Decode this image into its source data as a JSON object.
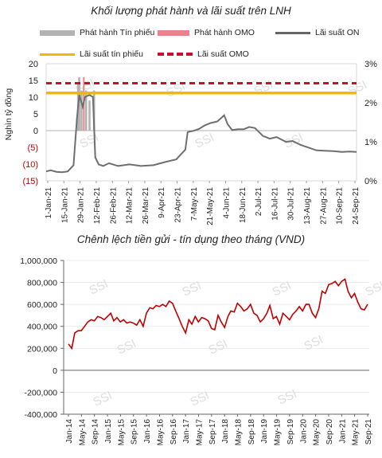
{
  "chart_data": [
    {
      "type": "line",
      "title": "Khối lượng phát hành và lãi suất trên LNH",
      "ylabel": "Nghìn tỷ đồng",
      "ylim": [
        -15,
        20
      ],
      "y_ticks": [
        "20",
        "15",
        "10",
        "5",
        "0",
        "(5)",
        "(10)",
        "(15)"
      ],
      "y_tick_values": [
        20,
        15,
        10,
        5,
        0,
        -5,
        -10,
        -15
      ],
      "y2lim": [
        0,
        3
      ],
      "y2_ticks": [
        "3%",
        "2%",
        "1%",
        "0%"
      ],
      "y2_tick_values": [
        3,
        2,
        1,
        0
      ],
      "x_tick_labels": [
        "1-Jan-21",
        "15-Jan-21",
        "29-Jan-21",
        "12-Feb-21",
        "26-Feb-21",
        "12-Mar-21",
        "26-Mar-21",
        "9-Apr-21",
        "23-Apr-21",
        "7-May-21",
        "21-May-21",
        "4-Jun-21",
        "18-Jun-21",
        "2-Jul-21",
        "16-Jul-21",
        "30-Jul-21",
        "13-Aug-21",
        "27-Aug-21",
        "10-Sep-21",
        "24-Sep-21"
      ],
      "legend": {
        "tinphieu_bar": "Phát hành Tín phiếu",
        "omo_bar": "Phát hành OMO",
        "on_rate": "Lãi suất ON",
        "tinphieu_rate": "Lãi suất tín phiếu",
        "omo_rate": "Lãi suất OMO"
      },
      "colors": {
        "tinphieu_bar": "#b3b3b3",
        "omo_bar": "#e8838d",
        "on_rate": "#6e6e6e",
        "tinphieu_rate": "#f5b800",
        "omo_rate": "#c8102e"
      },
      "series": [
        {
          "name": "Phát hành Tín phiếu",
          "axis": "left",
          "kind": "bar",
          "x": [
            "2021-01-29",
            "2021-01-30",
            "2021-02-01",
            "2021-02-05",
            "2021-02-08",
            "2021-02-12"
          ],
          "values": [
            14,
            16,
            12,
            12,
            9,
            12
          ]
        },
        {
          "name": "Phát hành OMO",
          "axis": "left",
          "kind": "bar",
          "x": [
            "2021-02-03"
          ],
          "values": [
            16
          ]
        },
        {
          "name": "Lãi suất ON",
          "axis": "right",
          "unit": "%",
          "x": [
            "2021-01-01",
            "2021-01-05",
            "2021-01-10",
            "2021-01-15",
            "2021-01-20",
            "2021-01-25",
            "2021-01-28",
            "2021-01-30",
            "2021-02-02",
            "2021-02-04",
            "2021-02-08",
            "2021-02-11",
            "2021-02-13",
            "2021-02-16",
            "2021-02-20",
            "2021-02-25",
            "2021-03-05",
            "2021-03-15",
            "2021-03-25",
            "2021-04-05",
            "2021-04-15",
            "2021-04-25",
            "2021-05-03",
            "2021-05-05",
            "2021-05-10",
            "2021-05-15",
            "2021-05-20",
            "2021-05-25",
            "2021-05-31",
            "2021-06-03",
            "2021-06-06",
            "2021-06-09",
            "2021-06-13",
            "2021-06-18",
            "2021-06-23",
            "2021-06-28",
            "2021-07-03",
            "2021-07-10",
            "2021-07-16",
            "2021-07-22",
            "2021-07-30",
            "2021-08-05",
            "2021-08-12",
            "2021-08-19",
            "2021-08-26",
            "2021-09-02",
            "2021-09-10",
            "2021-09-17",
            "2021-09-24",
            "2021-09-30"
          ],
          "values": [
            0.24,
            0.27,
            0.23,
            0.22,
            0.24,
            0.4,
            1.6,
            2.2,
            1.9,
            2.15,
            2.2,
            2.15,
            0.6,
            0.42,
            0.38,
            0.45,
            0.38,
            0.42,
            0.38,
            0.4,
            0.48,
            0.55,
            0.8,
            1.25,
            1.28,
            1.33,
            1.42,
            1.48,
            1.52,
            1.6,
            1.68,
            1.45,
            1.3,
            1.32,
            1.32,
            1.38,
            1.35,
            1.15,
            1.08,
            1.12,
            1.0,
            1.02,
            0.92,
            0.85,
            0.78,
            0.77,
            0.76,
            0.74,
            0.75,
            0.74
          ]
        },
        {
          "name": "Lãi suất tín phiếu",
          "axis": "right",
          "unit": "%",
          "values": [
            2.25
          ]
        },
        {
          "name": "Lãi suất OMO",
          "axis": "right",
          "unit": "%",
          "values": [
            2.5
          ]
        }
      ]
    },
    {
      "type": "line",
      "title": "Chênh lệch tiền gửi - tín dụng theo tháng (VND)",
      "ylim": [
        -400000,
        1000000
      ],
      "y_ticks": [
        "1,000,000",
        "800,000",
        "600,000",
        "400,000",
        "200,000",
        "0",
        "-200,000",
        "-400,000"
      ],
      "y_tick_values": [
        1000000,
        800000,
        600000,
        400000,
        200000,
        0,
        -200000,
        -400000
      ],
      "x_tick_labels": [
        "Jan-14",
        "May-14",
        "Sep-14",
        "Jan-15",
        "May-15",
        "Sep-15",
        "Jan-16",
        "May-16",
        "Sep-16",
        "Jan-17",
        "May-17",
        "Sep-17",
        "Jan-18",
        "May-18",
        "Sep-18",
        "Jan-19",
        "May-19",
        "Sep-19",
        "Jan-20",
        "May-20",
        "Sep-20",
        "Jan-21",
        "May-21",
        "Sep-21"
      ],
      "colors": {
        "line": "#c00000"
      },
      "series": [
        {
          "x": [
            "2014-01",
            "2014-02",
            "2014-03",
            "2014-04",
            "2014-05",
            "2014-06",
            "2014-07",
            "2014-08",
            "2014-09",
            "2014-10",
            "2014-11",
            "2014-12",
            "2015-01",
            "2015-02",
            "2015-03",
            "2015-04",
            "2015-05",
            "2015-06",
            "2015-07",
            "2015-08",
            "2015-09",
            "2015-10",
            "2015-11",
            "2015-12",
            "2016-01",
            "2016-02",
            "2016-03",
            "2016-04",
            "2016-05",
            "2016-06",
            "2016-07",
            "2016-08",
            "2016-09",
            "2016-10",
            "2016-11",
            "2016-12",
            "2017-01",
            "2017-02",
            "2017-03",
            "2017-04",
            "2017-05",
            "2017-06",
            "2017-07",
            "2017-08",
            "2017-09",
            "2017-10",
            "2017-11",
            "2017-12",
            "2018-01",
            "2018-02",
            "2018-03",
            "2018-04",
            "2018-05",
            "2018-06",
            "2018-07",
            "2018-08",
            "2018-09",
            "2018-10",
            "2018-11",
            "2018-12",
            "2019-01",
            "2019-02",
            "2019-03",
            "2019-04",
            "2019-05",
            "2019-06",
            "2019-07",
            "2019-08",
            "2019-09",
            "2019-10",
            "2019-11",
            "2019-12",
            "2020-01",
            "2020-02",
            "2020-03",
            "2020-04",
            "2020-05",
            "2020-06",
            "2020-07",
            "2020-08",
            "2020-09",
            "2020-10",
            "2020-11",
            "2020-12",
            "2021-01",
            "2021-02",
            "2021-03",
            "2021-04",
            "2021-05",
            "2021-06",
            "2021-07",
            "2021-08",
            "2021-09"
          ],
          "values": [
            240000,
            200000,
            340000,
            360000,
            360000,
            400000,
            440000,
            460000,
            450000,
            490000,
            480000,
            460000,
            490000,
            520000,
            450000,
            480000,
            440000,
            460000,
            430000,
            440000,
            430000,
            410000,
            460000,
            400000,
            520000,
            570000,
            560000,
            590000,
            580000,
            600000,
            580000,
            630000,
            610000,
            540000,
            470000,
            400000,
            340000,
            460000,
            420000,
            490000,
            440000,
            480000,
            470000,
            450000,
            380000,
            370000,
            500000,
            440000,
            390000,
            490000,
            540000,
            530000,
            610000,
            580000,
            540000,
            560000,
            600000,
            520000,
            500000,
            440000,
            470000,
            520000,
            590000,
            470000,
            490000,
            420000,
            520000,
            490000,
            460000,
            510000,
            540000,
            580000,
            540000,
            600000,
            600000,
            520000,
            480000,
            560000,
            720000,
            700000,
            780000,
            790000,
            810000,
            770000,
            810000,
            830000,
            720000,
            660000,
            700000,
            620000,
            560000,
            550000,
            600000
          ]
        }
      ]
    }
  ]
}
